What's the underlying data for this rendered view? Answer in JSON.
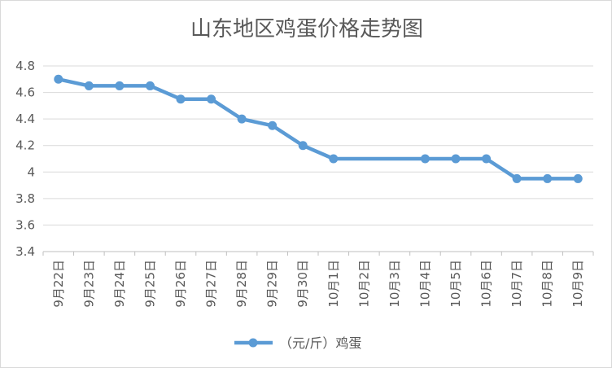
{
  "chart_data": {
    "type": "line",
    "title": "山东地区鸡蛋价格走势图",
    "xlabel": "",
    "ylabel": "",
    "categories": [
      "9月22日",
      "9月23日",
      "9月24日",
      "9月25日",
      "9月26日",
      "9月27日",
      "9月28日",
      "9月29日",
      "9月30日",
      "10月1日",
      "10月2日",
      "10月3日",
      "10月4日",
      "10月5日",
      "10月6日",
      "10月7日",
      "10月8日",
      "10月9日"
    ],
    "series": [
      {
        "name": "（元/斤）鸡蛋",
        "values": [
          4.7,
          4.65,
          4.65,
          4.65,
          4.55,
          4.55,
          4.4,
          4.35,
          4.2,
          4.1,
          null,
          null,
          4.1,
          4.1,
          4.1,
          3.95,
          3.95,
          3.95
        ],
        "color": "#5b9bd5",
        "connect_gaps": true
      }
    ],
    "ylim": [
      3.4,
      4.8
    ],
    "yticks": [
      "3.4",
      "3.6",
      "3.8",
      "4",
      "4.2",
      "4.4",
      "4.6",
      "4.8"
    ],
    "grid": true,
    "grid_color": "#d9d9d9",
    "axis_color": "#bfbfbf",
    "text_color": "#595959",
    "legend_position": "bottom"
  }
}
